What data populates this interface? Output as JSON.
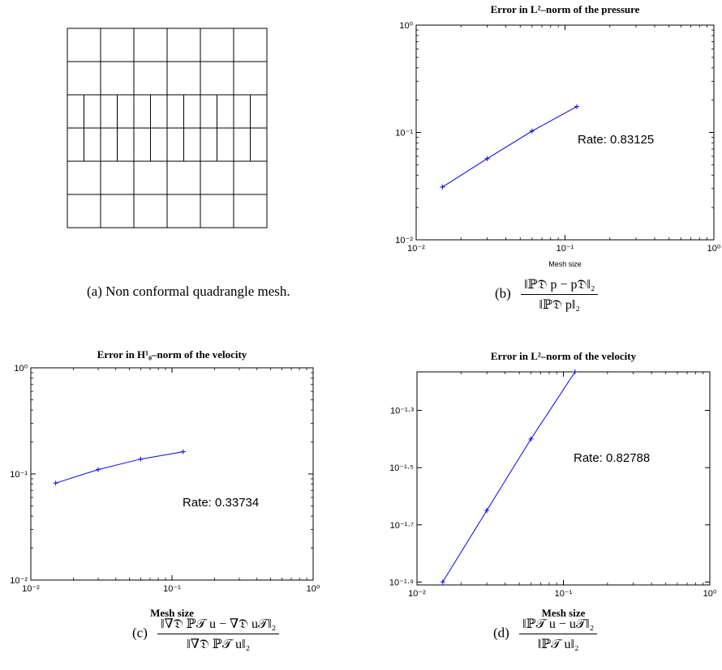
{
  "captions": {
    "a": "(a)  Non conformal quadrangle mesh.",
    "b_label": "(b)",
    "b_num": "‖ℙ𝔇 p − p𝔇‖₂",
    "b_den": "‖ℙ𝔇 p‖₂",
    "c_label": "(c)",
    "c_num": "‖∇𝔇 ℙ𝒯 u − ∇𝔇 u𝒯‖₂",
    "c_den": "‖∇𝔇 ℙ𝒯 u‖₂",
    "d_label": "(d)",
    "d_num": "‖ℙ𝒯 u − u𝒯‖₂",
    "d_den": "‖ℙ𝒯 u‖₂"
  },
  "mesh": {
    "rows": [
      6,
      6,
      12,
      12,
      6,
      6
    ],
    "line_color": "#000000"
  },
  "chart_data": [
    {
      "id": "b",
      "type": "line",
      "title": "Error in L²–norm of the pressure",
      "xlabel": "Mesh size",
      "ylabel": "",
      "xscale": "log",
      "yscale": "log",
      "xlim": [
        0.01,
        1
      ],
      "ylim": [
        0.01,
        1
      ],
      "xticks": [
        {
          "v": 0.01,
          "label": "10⁻²"
        },
        {
          "v": 0.1,
          "label": "10⁻¹"
        },
        {
          "v": 1,
          "label": "10⁰"
        }
      ],
      "yticks": [
        {
          "v": 0.01,
          "label": "10⁻²"
        },
        {
          "v": 0.1,
          "label": "10⁻¹"
        },
        {
          "v": 1,
          "label": "10⁰"
        }
      ],
      "annotation": "Rate: 0.83125",
      "color": "#0000ff",
      "x": [
        0.015,
        0.03,
        0.06,
        0.12
      ],
      "y": [
        0.031,
        0.057,
        0.103,
        0.174
      ]
    },
    {
      "id": "c",
      "type": "line",
      "title": "Error in H¹₀–norm of the velocity",
      "xlabel": "Mesh size",
      "ylabel": "",
      "xscale": "log",
      "yscale": "log",
      "xlim": [
        0.01,
        1
      ],
      "ylim": [
        0.01,
        1
      ],
      "xticks": [
        {
          "v": 0.01,
          "label": "10⁻²"
        },
        {
          "v": 0.1,
          "label": "10⁻¹"
        },
        {
          "v": 1,
          "label": "10⁰"
        }
      ],
      "yticks": [
        {
          "v": 0.01,
          "label": "10⁻²"
        },
        {
          "v": 0.1,
          "label": "10⁻¹"
        },
        {
          "v": 1,
          "label": "10⁰"
        }
      ],
      "annotation": "Rate: 0.33734",
      "color": "#0000ff",
      "x": [
        0.015,
        0.03,
        0.06,
        0.12
      ],
      "y": [
        0.082,
        0.11,
        0.138,
        0.162
      ]
    },
    {
      "id": "d",
      "type": "line",
      "title": "Error in L²–norm of the velocity",
      "xlabel": "Mesh size",
      "ylabel": "",
      "xscale": "log",
      "yscale": "log",
      "xlim": [
        0.01,
        1
      ],
      "ylim": [
        0.0123,
        0.0683
      ],
      "xticks": [
        {
          "v": 0.01,
          "label": "10⁻²"
        },
        {
          "v": 0.1,
          "label": "10⁻¹"
        },
        {
          "v": 1,
          "label": "10⁰"
        }
      ],
      "yticks": [
        {
          "v": 0.0501,
          "label": "10⁻¹·³"
        },
        {
          "v": 0.0316,
          "label": "10⁻¹·⁵"
        },
        {
          "v": 0.01995,
          "label": "10⁻¹·⁷"
        },
        {
          "v": 0.01259,
          "label": "10⁻¹·⁹"
        }
      ],
      "annotation": "Rate: 0.82788",
      "color": "#0000ff",
      "x": [
        0.015,
        0.03,
        0.06,
        0.12
      ],
      "y": [
        0.0126,
        0.0224,
        0.0398,
        0.0683
      ]
    }
  ]
}
